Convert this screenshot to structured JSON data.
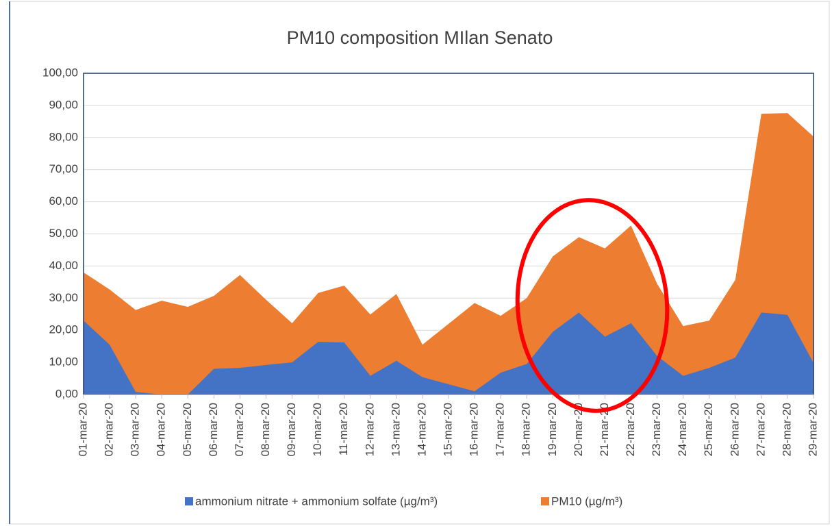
{
  "chart_data": {
    "type": "area",
    "title": "PM10 composition MIlan Senato",
    "categories": [
      "01-mar-20",
      "02-mar-20",
      "03-mar-20",
      "04-mar-20",
      "05-mar-20",
      "06-mar-20",
      "07-mar-20",
      "08-mar-20",
      "09-mar-20",
      "10-mar-20",
      "11-mar-20",
      "12-mar-20",
      "13-mar-20",
      "14-mar-20",
      "15-mar-20",
      "16-mar-20",
      "17-mar-20",
      "18-mar-20",
      "19-mar-20",
      "20-mar-20",
      "21-mar-20",
      "22-mar-20",
      "23-mar-20",
      "24-mar-20",
      "25-mar-20",
      "26-mar-20",
      "27-mar-20",
      "28-mar-20",
      "29-mar-20"
    ],
    "series": [
      {
        "name": "ammonium nitrate + ammonium solfate (µg/m³)",
        "color": "#4472c4",
        "values": [
          23,
          15.5,
          0.8,
          0,
          0,
          8,
          8.3,
          9.2,
          10,
          16.4,
          16.2,
          5.8,
          10.5,
          5.4,
          3.2,
          1,
          6.8,
          9.5,
          19.5,
          25.5,
          18,
          22.2,
          12,
          5.8,
          8.3,
          11.5,
          25.5,
          24.8,
          9.8
        ]
      },
      {
        "name": "PM10 (µg/m³)",
        "color": "#ed7d31",
        "values": [
          38,
          32.7,
          26.3,
          29.2,
          27.3,
          30.7,
          37.2,
          29.5,
          22.2,
          31.6,
          33.9,
          24.9,
          31.3,
          15.5,
          22,
          28.5,
          24.5,
          30,
          43,
          49,
          45.5,
          52.6,
          34.5,
          21.3,
          23,
          35.7,
          87.4,
          87.6,
          80.3
        ]
      }
    ],
    "ylim": [
      0,
      100
    ],
    "yticks": [
      {
        "value": 0,
        "label": "0,00"
      },
      {
        "value": 10,
        "label": "10,00"
      },
      {
        "value": 20,
        "label": "20,00"
      },
      {
        "value": 30,
        "label": "30,00"
      },
      {
        "value": 40,
        "label": "40,00"
      },
      {
        "value": 50,
        "label": "50,00"
      },
      {
        "value": 60,
        "label": "60,00"
      },
      {
        "value": 70,
        "label": "70,00"
      },
      {
        "value": 80,
        "label": "80,00"
      },
      {
        "value": 90,
        "label": "90,00"
      },
      {
        "value": 100,
        "label": "100,00"
      }
    ],
    "grid": true,
    "legend": "bottom"
  }
}
